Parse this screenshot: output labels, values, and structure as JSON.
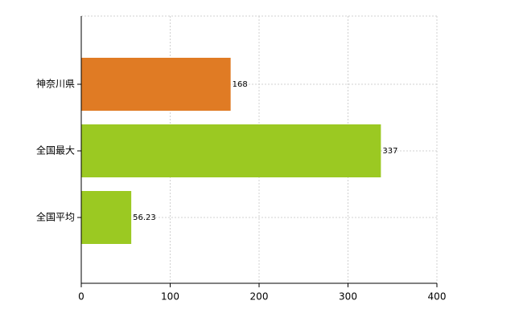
{
  "chart_data": {
    "type": "bar",
    "orientation": "horizontal",
    "categories": [
      "神奈川県",
      "全国最大",
      "全国平均"
    ],
    "values": [
      168,
      337,
      56.23
    ],
    "colors": [
      "#e07b24",
      "#9bc922",
      "#9bc922"
    ],
    "xlim": [
      0,
      400
    ],
    "xticks": [
      0,
      100,
      200,
      300,
      400
    ],
    "grid": true
  }
}
